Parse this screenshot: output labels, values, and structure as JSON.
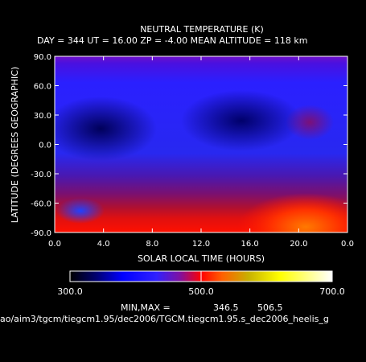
{
  "chart_data": {
    "type": "heatmap",
    "title": "NEUTRAL TEMPERATURE (K)",
    "subtitle": "DAY = 344   UT = 16.00   ZP =   -4.00   MEAN ALTITUDE = 118 km",
    "xlabel": "SOLAR LOCAL TIME (HOURS)",
    "ylabel": "LATITUDE (DEGREES GEOGRAPHIC)",
    "x_ticks": [
      "0.0",
      "4.0",
      "8.0",
      "12.0",
      "16.0",
      "20.0",
      "0.0"
    ],
    "y_ticks": [
      "90.0",
      "60.0",
      "30.0",
      "0.0",
      "-30.0",
      "-60.0",
      "-90.0"
    ],
    "xlim": [
      0,
      24
    ],
    "ylim": [
      -90,
      90
    ],
    "colorbar": {
      "labels": [
        "300.0",
        "500.0",
        "700.0"
      ],
      "min": 300,
      "max": 700
    },
    "minmax_label": "MIN,MAX =",
    "min_value": "346.5",
    "max_value": "506.5",
    "file_path": "ao/aim3/tgcm/tiegcm1.95/dec2006/TGCM.tiegcm1.95.s_dec2006_heelis_g",
    "grid": false
  }
}
